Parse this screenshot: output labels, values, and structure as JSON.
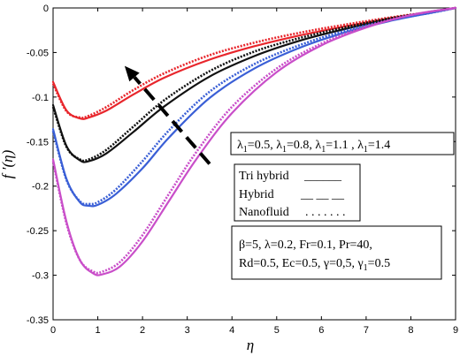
{
  "chart_data": {
    "type": "line",
    "title": "",
    "xlabel": "η",
    "ylabel": "f ′(η)",
    "xlim": [
      0,
      9
    ],
    "ylim": [
      -0.35,
      0
    ],
    "x_ticks": [
      "0",
      "1",
      "2",
      "3",
      "4",
      "5",
      "6",
      "7",
      "8",
      "9"
    ],
    "y_ticks": [
      "0",
      "-0.05",
      "-0.1",
      "-0.15",
      "-0.2",
      "-0.25",
      "-0.3",
      "-0.35"
    ],
    "grid": false,
    "series": [
      {
        "lambda1": 0.5,
        "color": "#e8262c",
        "fluid": "Tri hybrid",
        "x": [
          0,
          0.3,
          0.6,
          0.8,
          1.2,
          1.8,
          2.5,
          3.5,
          4.5,
          5.5,
          6.5,
          7.5,
          8.5,
          9
        ],
        "y": [
          -0.083,
          -0.115,
          -0.124,
          -0.123,
          -0.115,
          -0.097,
          -0.078,
          -0.058,
          -0.043,
          -0.031,
          -0.021,
          -0.012,
          -0.004,
          0
        ]
      },
      {
        "lambda1": 0.5,
        "color": "#e8262c",
        "fluid": "Nanofluid",
        "x": [
          0,
          0.3,
          0.6,
          0.8,
          1.2,
          1.8,
          2.5,
          3.5,
          4.5,
          5.5,
          6.5,
          7.5,
          8.5,
          9
        ],
        "y": [
          -0.085,
          -0.116,
          -0.123,
          -0.121,
          -0.111,
          -0.092,
          -0.073,
          -0.053,
          -0.039,
          -0.028,
          -0.019,
          -0.011,
          -0.004,
          0
        ]
      },
      {
        "lambda1": 0.8,
        "color": "#111111",
        "fluid": "Tri hybrid",
        "x": [
          0,
          0.3,
          0.6,
          0.8,
          1.2,
          1.8,
          2.5,
          3.5,
          4.5,
          5.5,
          6.5,
          7.5,
          8.5,
          9
        ],
        "y": [
          -0.109,
          -0.155,
          -0.171,
          -0.172,
          -0.163,
          -0.139,
          -0.11,
          -0.077,
          -0.054,
          -0.037,
          -0.024,
          -0.013,
          -0.004,
          0
        ]
      },
      {
        "lambda1": 0.8,
        "color": "#111111",
        "fluid": "Nanofluid",
        "x": [
          0,
          0.3,
          0.6,
          0.8,
          1.2,
          1.8,
          2.5,
          3.5,
          4.5,
          5.5,
          6.5,
          7.5,
          8.5,
          9
        ],
        "y": [
          -0.111,
          -0.156,
          -0.17,
          -0.17,
          -0.159,
          -0.133,
          -0.103,
          -0.071,
          -0.049,
          -0.034,
          -0.022,
          -0.012,
          -0.004,
          0
        ]
      },
      {
        "lambda1": 1.1,
        "color": "#3a5fd6",
        "fluid": "Tri hybrid",
        "x": [
          0,
          0.3,
          0.6,
          0.8,
          1.0,
          1.4,
          2.0,
          2.6,
          3.5,
          4.5,
          5.5,
          6.5,
          7.5,
          8.5,
          9
        ],
        "y": [
          -0.136,
          -0.192,
          -0.218,
          -0.222,
          -0.221,
          -0.209,
          -0.18,
          -0.145,
          -0.101,
          -0.068,
          -0.045,
          -0.028,
          -0.015,
          -0.005,
          0
        ]
      },
      {
        "lambda1": 1.1,
        "color": "#3a5fd6",
        "fluid": "Nanofluid",
        "x": [
          0,
          0.3,
          0.6,
          0.8,
          1.0,
          1.4,
          2.0,
          2.6,
          3.5,
          4.5,
          5.5,
          6.5,
          7.5,
          8.5,
          9
        ],
        "y": [
          -0.138,
          -0.193,
          -0.217,
          -0.22,
          -0.218,
          -0.204,
          -0.172,
          -0.137,
          -0.094,
          -0.063,
          -0.042,
          -0.026,
          -0.014,
          -0.005,
          0
        ]
      },
      {
        "lambda1": 1.4,
        "color": "#c94ec9",
        "fluid": "Tri hybrid",
        "x": [
          0,
          0.3,
          0.6,
          0.9,
          1.1,
          1.5,
          2.0,
          2.6,
          3.2,
          4.0,
          5.0,
          6.0,
          7.0,
          8.0,
          9
        ],
        "y": [
          -0.17,
          -0.24,
          -0.283,
          -0.298,
          -0.299,
          -0.29,
          -0.262,
          -0.216,
          -0.17,
          -0.118,
          -0.072,
          -0.042,
          -0.022,
          -0.008,
          0
        ]
      },
      {
        "lambda1": 1.4,
        "color": "#c94ec9",
        "fluid": "Nanofluid",
        "x": [
          0,
          0.3,
          0.6,
          0.9,
          1.1,
          1.5,
          2.0,
          2.6,
          3.2,
          4.0,
          5.0,
          6.0,
          7.0,
          8.0,
          9
        ],
        "y": [
          -0.172,
          -0.242,
          -0.283,
          -0.296,
          -0.296,
          -0.285,
          -0.255,
          -0.208,
          -0.162,
          -0.111,
          -0.068,
          -0.04,
          -0.021,
          -0.008,
          0
        ]
      }
    ],
    "arrow": {
      "from": [
        3.5,
        -0.175
      ],
      "to": [
        1.6,
        -0.065
      ]
    },
    "annotations": {
      "lambda_text": "λ1=0.5, λ1=0.8, λ1=1.1 , λ1=1.4",
      "lambda_parts": [
        "λ",
        "1",
        "=0.5, ",
        "λ",
        "1",
        "=0.8, ",
        "λ",
        "1",
        "=1.1 , ",
        "λ",
        "1",
        "=1.4"
      ],
      "legend_tri": "Tri hybrid",
      "legend_hybrid": "Hybrid",
      "legend_nano": "Nanofluid",
      "legend_tri_line": "______",
      "legend_hybrid_line": "__ __ __",
      "legend_nano_line": ". . . . . . .",
      "params_line1": "β=5,   λ=0.2,   Fr=0.1,   Pr=40,",
      "params_line2": "Rd=0.5,  Ec=0.5,  γ=0,5,  γ1=0.5",
      "params_line2_parts": [
        "Rd=0.5,  Ec=0.5,  γ=0,5,  γ",
        "1",
        "=0.5"
      ]
    }
  }
}
